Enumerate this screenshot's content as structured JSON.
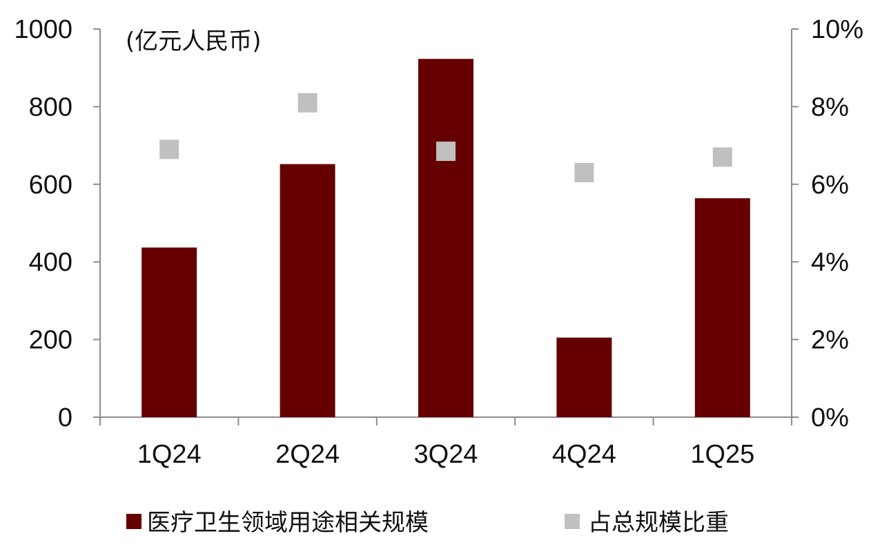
{
  "chart_data": {
    "type": "bar",
    "categories": [
      "1Q24",
      "2Q24",
      "3Q24",
      "4Q24",
      "1Q25"
    ],
    "series": [
      {
        "name": "医疗卫生领域用途相关规模",
        "kind": "bar",
        "axis": "left",
        "color": "#660000",
        "values": [
          437,
          652,
          923,
          205,
          564
        ]
      },
      {
        "name": "占总规模比重",
        "kind": "marker",
        "axis": "right",
        "color": "#c0c0c0",
        "values": [
          6.9,
          8.1,
          6.85,
          6.3,
          6.7
        ]
      }
    ],
    "y_left": {
      "unit_label": "(亿元人民币)",
      "ylim": [
        0,
        1000
      ],
      "ticks": [
        "0",
        "200",
        "400",
        "600",
        "800",
        "1000"
      ]
    },
    "y_right": {
      "ylim": [
        0,
        10
      ],
      "ticks": [
        "0%",
        "2%",
        "4%",
        "6%",
        "8%",
        "10%"
      ]
    },
    "legend_position": "bottom",
    "grid": false
  }
}
